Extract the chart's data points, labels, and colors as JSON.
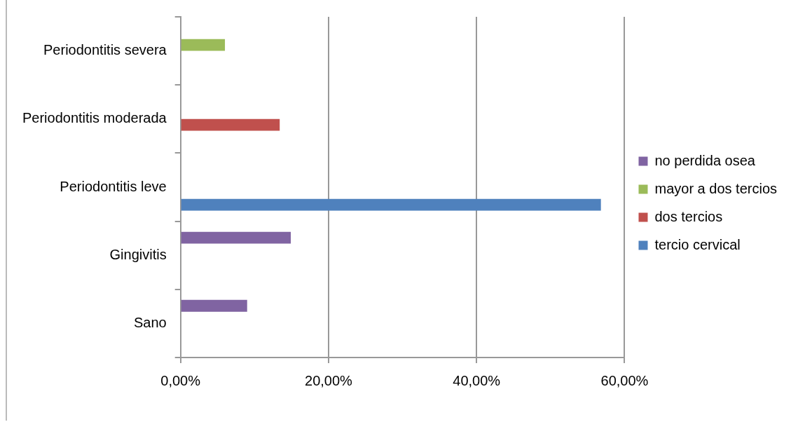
{
  "chart_data": {
    "type": "bar",
    "orientation": "horizontal",
    "categories": [
      "Periodontitis severa",
      "Periodontitis moderada",
      "Periodontitis leve",
      "Gingivitis",
      "Sano"
    ],
    "series": [
      {
        "name": "no perdida osea",
        "color": "#8064a2",
        "values": [
          null,
          null,
          null,
          14.9,
          9.0
        ]
      },
      {
        "name": "mayor a dos tercios",
        "color": "#9bbb59",
        "values": [
          6.0,
          null,
          null,
          null,
          null
        ]
      },
      {
        "name": "dos tercios",
        "color": "#c0504d",
        "values": [
          null,
          13.4,
          null,
          null,
          null
        ]
      },
      {
        "name": "tercio cervical",
        "color": "#4f81bd",
        "values": [
          null,
          null,
          56.8,
          null,
          null
        ]
      }
    ],
    "xlim": [
      0,
      60
    ],
    "xticks": [
      {
        "value": 0,
        "label": "0,00%"
      },
      {
        "value": 20,
        "label": "20,00%"
      },
      {
        "value": 40,
        "label": "40,00%"
      },
      {
        "value": 60,
        "label": "60,00%"
      }
    ],
    "grid": "x",
    "legend": "right"
  }
}
